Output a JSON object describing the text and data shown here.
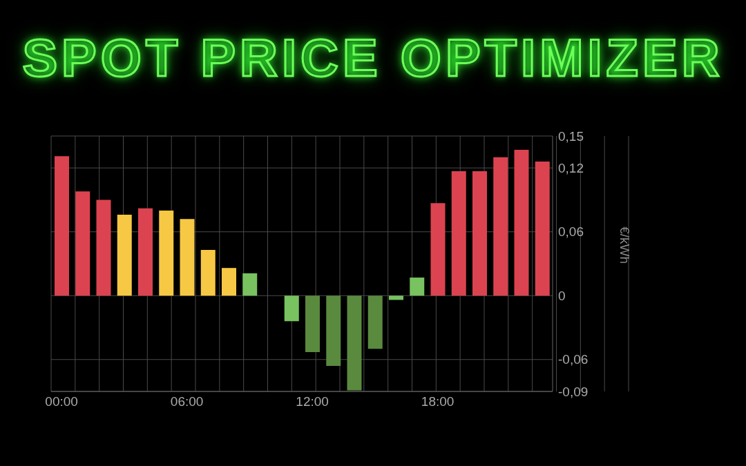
{
  "chart_data": {
    "type": "bar",
    "title": "SPOT PRICE OPTIMIZER",
    "ylabel": "€/kWh",
    "categories": [
      "00:00",
      null,
      null,
      null,
      null,
      null,
      "06:00",
      null,
      null,
      null,
      null,
      null,
      "12:00",
      null,
      null,
      null,
      null,
      null,
      "18:00",
      null,
      null,
      null,
      null,
      null
    ],
    "values": [
      0.131,
      0.098,
      0.09,
      0.076,
      0.082,
      0.08,
      0.072,
      0.043,
      0.026,
      0.021,
      0,
      -0.024,
      -0.053,
      -0.066,
      -0.089,
      -0.05,
      -0.004,
      0.017,
      0.087,
      0.117,
      0.117,
      0.13,
      0.137,
      0.126
    ],
    "colors": [
      "#dc4350",
      "#dc4350",
      "#dc4350",
      "#f7c843",
      "#dc4350",
      "#f7c843",
      "#f7c843",
      "#f7c843",
      "#f7c843",
      "#78c260",
      "#78c260",
      "#78c260",
      "#5a8a3e",
      "#5a8a3e",
      "#5a8a3e",
      "#5a8a3e",
      "#78c260",
      "#78c260",
      "#dc4350",
      "#dc4350",
      "#dc4350",
      "#dc4350",
      "#dc4350",
      "#dc4350"
    ],
    "ylim": [
      -0.09,
      0.15
    ],
    "yticks": [
      {
        "value": 0.15,
        "label": "0,15"
      },
      {
        "value": 0.12,
        "label": "0,12"
      },
      {
        "value": 0.06,
        "label": "0,06"
      },
      {
        "value": 0,
        "label": "0"
      },
      {
        "value": -0.06,
        "label": "-0,06"
      },
      {
        "value": -0.09,
        "label": "-0,09"
      }
    ],
    "grid": true
  }
}
